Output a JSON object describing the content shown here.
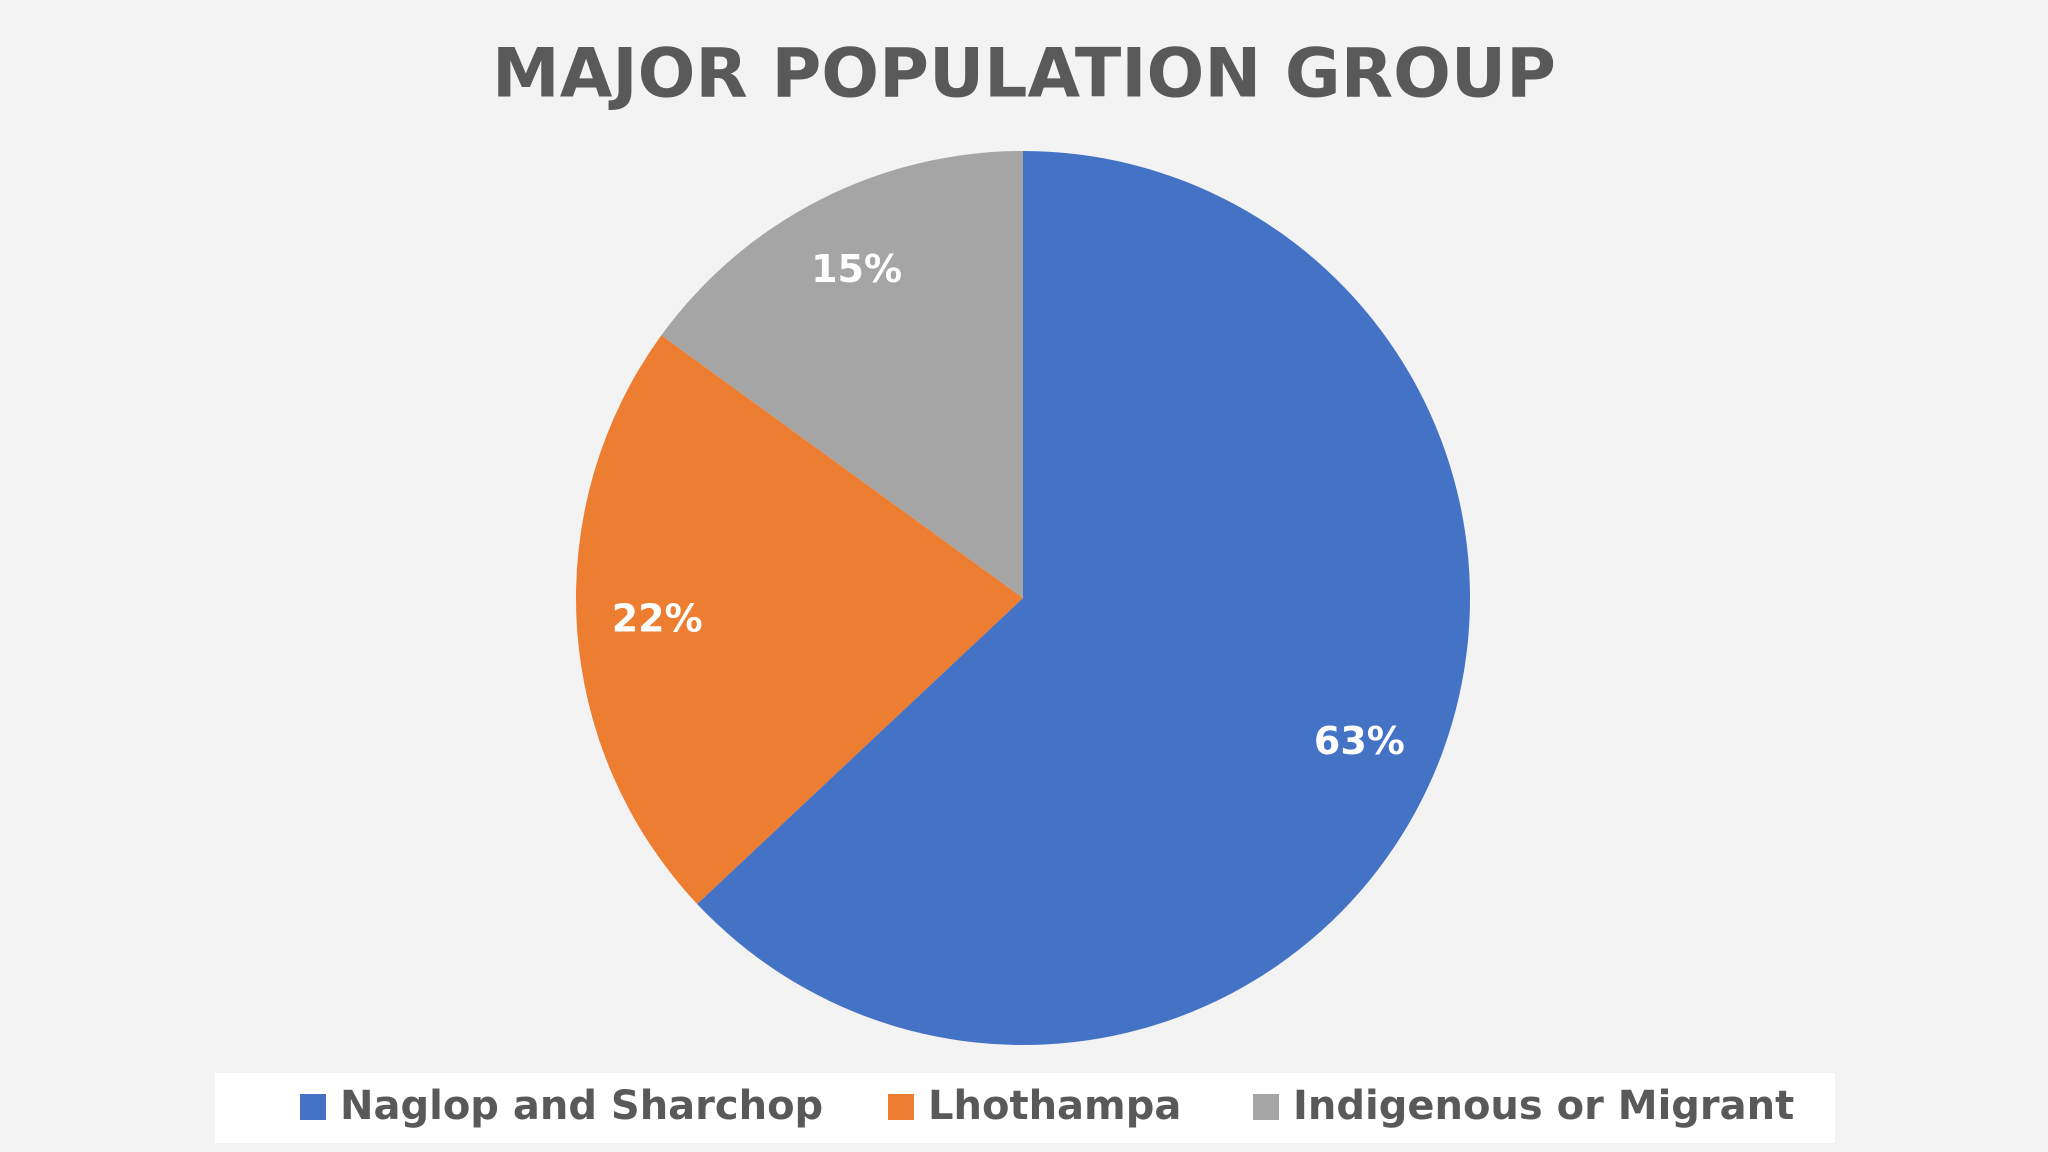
{
  "chart_data": {
    "type": "pie",
    "title": "MAJOR POPULATION GROUP",
    "categories": [
      "Naglop and Sharchop",
      "Lhothampa",
      "Indigenous or Migrant"
    ],
    "values": [
      63,
      22,
      15
    ],
    "value_labels": [
      "63%",
      "22%",
      "15%"
    ],
    "colors": [
      "#4472c4",
      "#ed7d31",
      "#a5a5a5"
    ],
    "legend": "bottom"
  }
}
